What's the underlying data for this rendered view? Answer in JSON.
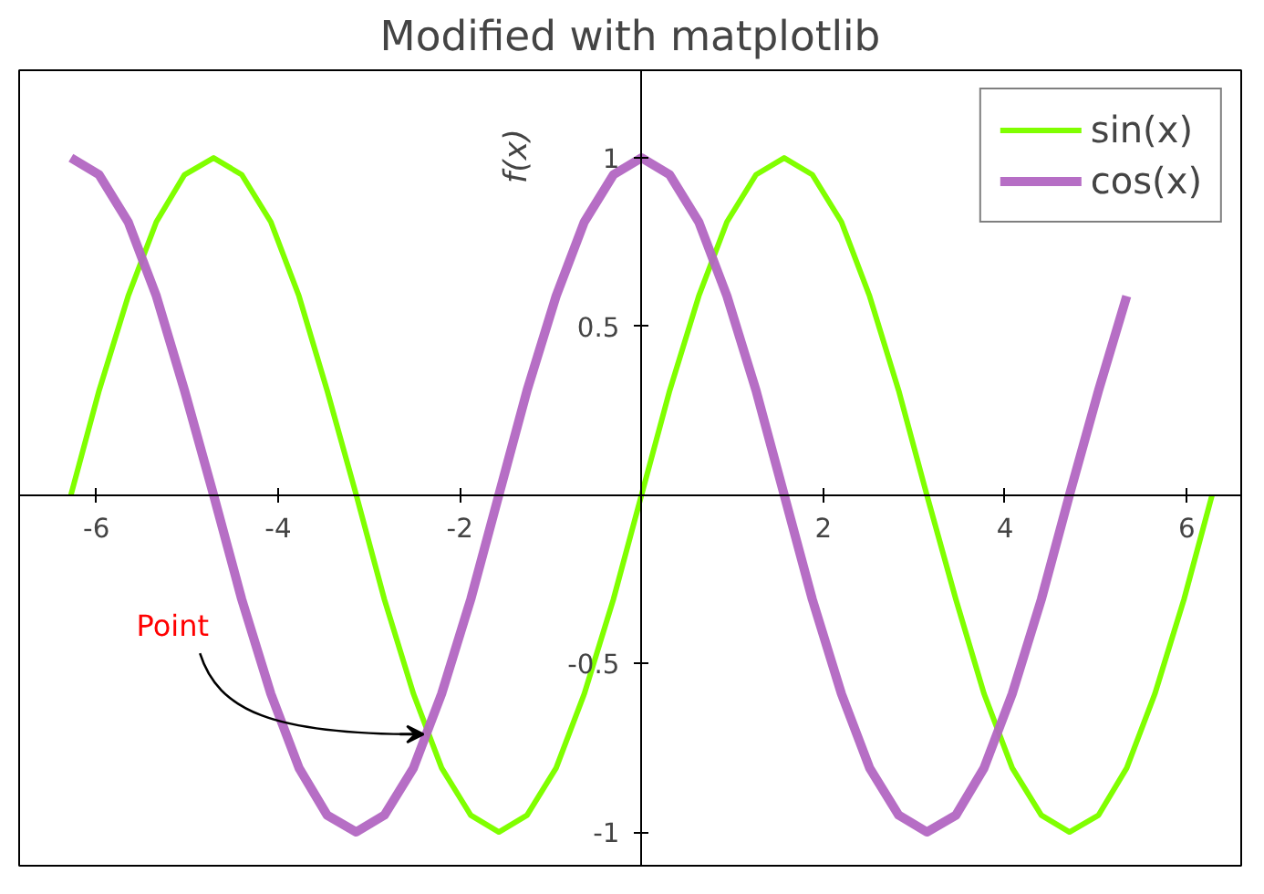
{
  "chart_data": {
    "type": "line",
    "title": "Modified with matplotlib",
    "ylabel": "f(x)",
    "x": [
      -6.28,
      -5.97,
      -5.65,
      -5.34,
      -5.03,
      -4.71,
      -4.4,
      -4.08,
      -3.77,
      -3.46,
      -3.14,
      -2.83,
      -2.51,
      -2.2,
      -1.88,
      -1.57,
      -1.26,
      -0.94,
      -0.63,
      -0.31,
      0,
      0.31,
      0.63,
      0.94,
      1.26,
      1.57,
      1.88,
      2.2,
      2.51,
      2.83,
      3.14,
      3.46,
      3.77,
      4.08,
      4.4,
      4.71,
      5.03,
      5.34,
      5.65,
      5.97,
      6.28
    ],
    "series": [
      {
        "name": "sin(x)",
        "color": "#80ff00",
        "values": [
          0,
          0.31,
          0.59,
          0.81,
          0.95,
          1,
          0.95,
          0.81,
          0.59,
          0.31,
          0,
          -0.31,
          -0.59,
          -0.81,
          -0.95,
          -1,
          -0.95,
          -0.81,
          -0.59,
          -0.31,
          0,
          0.31,
          0.59,
          0.81,
          0.95,
          1,
          0.95,
          0.81,
          0.59,
          0.31,
          0,
          -0.31,
          -0.59,
          -0.81,
          -0.95,
          -1,
          -0.95,
          -0.81,
          -0.59,
          -0.31,
          0
        ]
      },
      {
        "name": "cos(x)",
        "color": "#b266c2",
        "values": [
          1,
          0.95,
          0.81,
          0.59,
          0.31,
          0,
          -0.31,
          -0.59,
          -0.81,
          -0.95,
          -1,
          -0.95,
          -0.81,
          -0.59,
          -0.31,
          0,
          0.31,
          0.59,
          0.81,
          0.95,
          1,
          0.95,
          0.81,
          0.59,
          0.31,
          0,
          -0.31,
          -0.59,
          -0.81,
          -0.95,
          -1,
          -0.95,
          -0.81,
          -0.59,
          -0.31,
          0,
          0.31,
          0.59,
          null,
          null,
          null
        ]
      }
    ],
    "xlim": [
      -6.85,
      6.6
    ],
    "ylim": [
      -1.1,
      1.26
    ],
    "xticks": [
      -6,
      -4,
      -2,
      2,
      4,
      6
    ],
    "yticks": [
      -1,
      -0.5,
      0.5,
      1
    ],
    "annotations": [
      {
        "text": "Point",
        "x": -2.36,
        "y": -0.71
      }
    ],
    "grid": false,
    "legend": "top right",
    "marker": "none",
    "line_style": "solid"
  }
}
